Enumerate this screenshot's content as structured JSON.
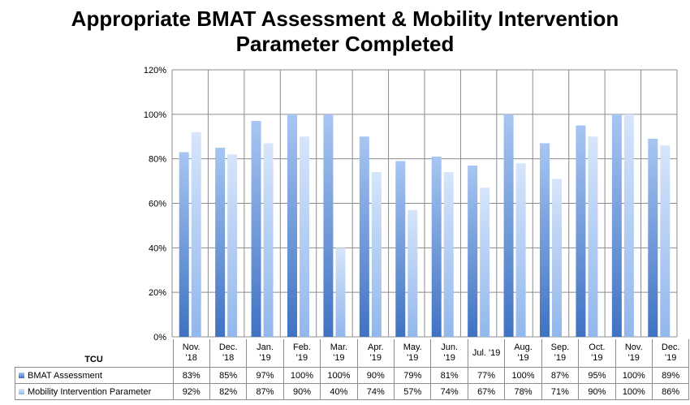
{
  "chart_data": {
    "type": "bar",
    "title_lines": [
      "Appropriate BMAT Assessment & Mobility Intervention",
      "Parameter Completed"
    ],
    "table_header": "TCU",
    "categories": [
      [
        "Nov.",
        "'18"
      ],
      [
        "Dec.",
        "'18"
      ],
      [
        "Jan.",
        "'19"
      ],
      [
        "Feb.",
        "'19"
      ],
      [
        "Mar.",
        "'19"
      ],
      [
        "Apr.",
        "'19"
      ],
      [
        "May.",
        "'19"
      ],
      [
        "Jun.",
        "'19"
      ],
      [
        "Jul. '19"
      ],
      [
        "Aug.",
        "'19"
      ],
      [
        "Sep.",
        "'19"
      ],
      [
        "Oct.",
        "'19"
      ],
      [
        "Nov.",
        "'19"
      ],
      [
        "Dec.",
        "'19"
      ]
    ],
    "series": [
      {
        "name": "BMAT Assessment",
        "values": [
          83,
          85,
          97,
          100,
          100,
          90,
          79,
          81,
          77,
          100,
          87,
          95,
          100,
          89
        ],
        "labels": [
          "83%",
          "85%",
          "97%",
          "100%",
          "100%",
          "90%",
          "79%",
          "81%",
          "77%",
          "100%",
          "87%",
          "95%",
          "100%",
          "89%"
        ],
        "color_top": "#a8c6f2",
        "color_bottom": "#3f72c2"
      },
      {
        "name": "Mobility Intervention Parameter",
        "values": [
          92,
          82,
          87,
          90,
          40,
          74,
          57,
          74,
          67,
          78,
          71,
          90,
          100,
          86
        ],
        "labels": [
          "92%",
          "82%",
          "87%",
          "90%",
          "40%",
          "74%",
          "57%",
          "74%",
          "67%",
          "78%",
          "71%",
          "90%",
          "100%",
          "86%"
        ],
        "color_top": "#d6e5fb",
        "color_bottom": "#92b7ec"
      }
    ],
    "y_ticks": [
      "0%",
      "20%",
      "40%",
      "60%",
      "80%",
      "100%",
      "120%"
    ],
    "ylim": [
      0,
      120
    ],
    "grid": true,
    "legend": "data-table"
  }
}
